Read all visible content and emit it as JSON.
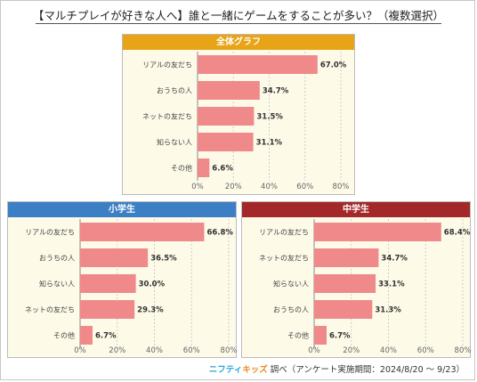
{
  "title": "【マルチプレイが好きな人へ】誰と一緒にゲームをすることが多い？（複数選択）",
  "footer": {
    "brand_a": "ニフティ",
    "brand_b": "キッズ",
    "text": "調べ（アンケート実施期間：2024/8/20 ～ 9/23）"
  },
  "chart_data": [
    {
      "type": "bar",
      "orientation": "horizontal",
      "title": "全体グラフ",
      "header_color": "#e8a317",
      "bar_color": "#f08a8a",
      "categories": [
        "リアルの友だち",
        "おうちの人",
        "ネットの友だち",
        "知らない人",
        "その他"
      ],
      "values": [
        67.0,
        34.7,
        31.5,
        31.1,
        6.6
      ],
      "value_labels": [
        "67.0%",
        "34.7%",
        "31.5%",
        "31.1%",
        "6.6%"
      ],
      "xlim": [
        0,
        80
      ],
      "ticks": [
        "0%",
        "20%",
        "40%",
        "60%",
        "80%"
      ],
      "grid": true
    },
    {
      "type": "bar",
      "orientation": "horizontal",
      "title": "小学生",
      "header_color": "#3d7fc4",
      "bar_color": "#f08a8a",
      "categories": [
        "リアルの友だち",
        "おうちの人",
        "知らない人",
        "ネットの友だち",
        "その他"
      ],
      "values": [
        66.8,
        36.5,
        30.0,
        29.3,
        6.7
      ],
      "value_labels": [
        "66.8%",
        "36.5%",
        "30.0%",
        "29.3%",
        "6.7%"
      ],
      "xlim": [
        0,
        80
      ],
      "ticks": [
        "0%",
        "20%",
        "40%",
        "60%",
        "80%"
      ],
      "grid": true
    },
    {
      "type": "bar",
      "orientation": "horizontal",
      "title": "中学生",
      "header_color": "#a3282a",
      "bar_color": "#f08a8a",
      "categories": [
        "リアルの友だち",
        "ネットの友だち",
        "知らない人",
        "おうちの人",
        "その他"
      ],
      "values": [
        68.4,
        34.7,
        33.1,
        31.3,
        6.7
      ],
      "value_labels": [
        "68.4%",
        "34.7%",
        "33.1%",
        "31.3%",
        "6.7%"
      ],
      "xlim": [
        0,
        80
      ],
      "ticks": [
        "0%",
        "20%",
        "40%",
        "60%",
        "80%"
      ],
      "grid": true
    }
  ]
}
